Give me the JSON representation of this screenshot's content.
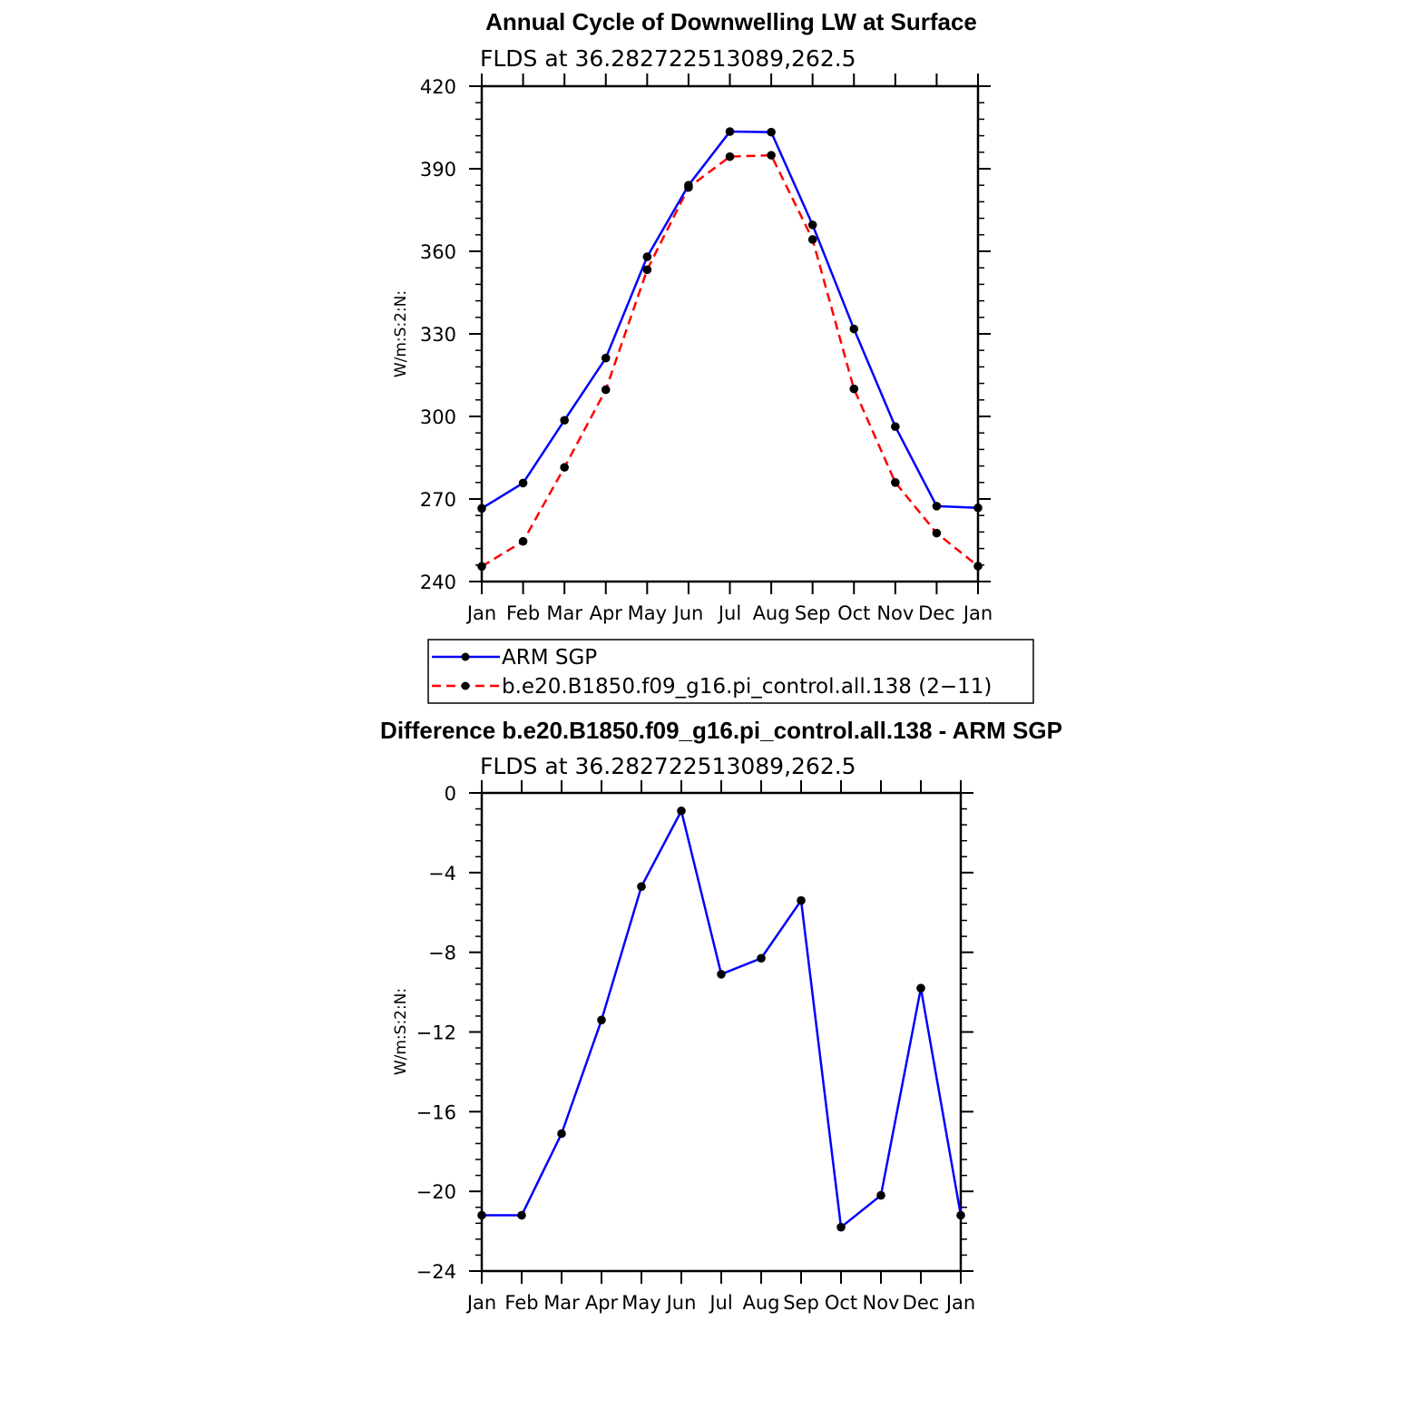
{
  "chart_data": [
    {
      "type": "line",
      "title": "Annual Cycle of Downwelling LW at Surface",
      "subtitle": "FLDS at 36.282722513089,262.5",
      "ylabel": "W/m:S:2:N:",
      "xlabel": "",
      "categories": [
        "Jan",
        "Feb",
        "Mar",
        "Apr",
        "May",
        "Jun",
        "Jul",
        "Aug",
        "Sep",
        "Oct",
        "Nov",
        "Dec",
        "Jan"
      ],
      "ylim": [
        240,
        420
      ],
      "yticks": [
        "240",
        "270",
        "300",
        "330",
        "360",
        "390",
        "420"
      ],
      "series": [
        {
          "name": "ARM SGP",
          "color": "#0000ff",
          "dash": false,
          "values": [
            266.6,
            275.8,
            298.6,
            321.2,
            358.0,
            384.0,
            403.5,
            403.3,
            369.6,
            331.8,
            296.3,
            267.4,
            266.8
          ]
        },
        {
          "name": "b.e20.B1850.f09_g16.pi_control.all.138 (2−11)",
          "color": "#ff0000",
          "dash": true,
          "values": [
            245.5,
            254.6,
            281.5,
            309.7,
            353.3,
            383.2,
            394.4,
            394.9,
            364.3,
            310.0,
            276.0,
            257.6,
            245.6
          ]
        }
      ],
      "legend_position": "below"
    },
    {
      "type": "line",
      "title": "Difference b.e20.B1850.f09_g16.pi_control.all.138 - ARM SGP",
      "subtitle": "FLDS at 36.282722513089,262.5",
      "ylabel": "W/m:S:2:N:",
      "xlabel": "",
      "categories": [
        "Jan",
        "Feb",
        "Mar",
        "Apr",
        "May",
        "Jun",
        "Jul",
        "Aug",
        "Sep",
        "Oct",
        "Nov",
        "Dec",
        "Jan"
      ],
      "ylim": [
        -24,
        0
      ],
      "yticks": [
        "−24",
        "−20",
        "−16",
        "−12",
        "−8",
        "−4",
        "0"
      ],
      "series": [
        {
          "color": "#0000ff",
          "dash": false,
          "values": [
            -21.2,
            -21.2,
            -17.1,
            -11.4,
            -4.7,
            -0.9,
            -9.1,
            -8.3,
            -5.4,
            -21.8,
            -20.2,
            -9.8,
            -21.2
          ]
        }
      ]
    }
  ]
}
